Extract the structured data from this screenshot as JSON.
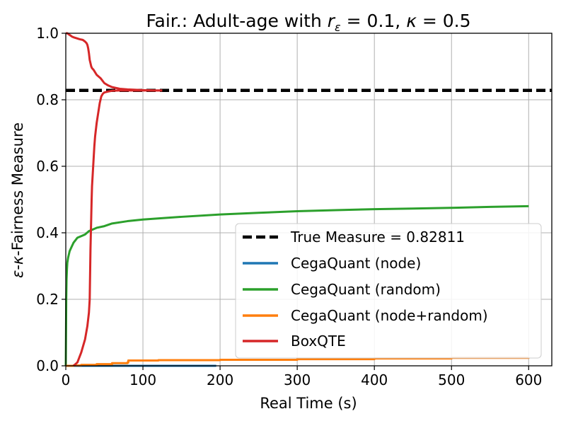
{
  "chart_data": {
    "type": "line",
    "title": "Fair.: Adult-age with r_ε = 0.1, κ = 0.5",
    "title_parts": {
      "prefix": "Fair.: Adult-age with ",
      "r": "r",
      "r_sub": "ε",
      "r_eq": " = 0.1, ",
      "kappa": "κ",
      "kappa_eq": " = 0.5"
    },
    "xlabel": "Real Time (s)",
    "ylabel": "ε-κ-Fairness Measure",
    "ylabel_parts": {
      "eps": "ε",
      "sep1": "-",
      "kappa": "κ",
      "rest": "-Fairness Measure"
    },
    "xlim": [
      0,
      630
    ],
    "ylim": [
      0,
      1.0
    ],
    "xticks": [
      0,
      100,
      200,
      300,
      400,
      500,
      600
    ],
    "xtick_labels": [
      "0",
      "100",
      "200",
      "300",
      "400",
      "500",
      "600"
    ],
    "yticks": [
      0,
      0.2,
      0.4,
      0.6,
      0.8,
      1.0
    ],
    "ytick_labels": [
      "0.0",
      "0.2",
      "0.4",
      "0.6",
      "0.8",
      "1.0"
    ],
    "grid": true,
    "legend_position": "lower-right",
    "reference_line": {
      "name": "True Measure = 0.82811",
      "y": 0.82811,
      "color": "#000000",
      "style": "dashed"
    },
    "series": [
      {
        "name": "CegaQuant (node)",
        "color": "#1f77b4",
        "x": [
          0,
          30,
          60,
          100,
          150,
          195
        ],
        "y": [
          0.0,
          0.0,
          0.0,
          0.0,
          0.0,
          0.0
        ]
      },
      {
        "name": "CegaQuant (random)",
        "color": "#2ca02c",
        "x": [
          0,
          0.3,
          0.6,
          1,
          1.5,
          2,
          3,
          4,
          5,
          7,
          10,
          15,
          20,
          25,
          30,
          40,
          50,
          60,
          80,
          100,
          150,
          200,
          250,
          300,
          350,
          400,
          450,
          500,
          550,
          600
        ],
        "y": [
          0.0,
          0.1,
          0.2,
          0.26,
          0.29,
          0.31,
          0.325,
          0.335,
          0.345,
          0.355,
          0.37,
          0.385,
          0.39,
          0.395,
          0.405,
          0.415,
          0.42,
          0.428,
          0.435,
          0.44,
          0.448,
          0.455,
          0.46,
          0.465,
          0.468,
          0.471,
          0.473,
          0.475,
          0.478,
          0.48
        ]
      },
      {
        "name": "CegaQuant (node+random)",
        "color": "#ff7f0e",
        "x": [
          0,
          10,
          20,
          40,
          60,
          80,
          81,
          120,
          200,
          300,
          400,
          500,
          600
        ],
        "y": [
          0.0,
          0.001,
          0.003,
          0.005,
          0.008,
          0.01,
          0.016,
          0.017,
          0.018,
          0.02,
          0.022,
          0.024,
          0.025
        ],
        "step": true
      },
      {
        "name": "BoxQTE",
        "color": "#d62728",
        "segments": [
          {
            "x": [
              10,
              15,
              20,
              25,
              28,
              30,
              31,
              32,
              33,
              33.5,
              34,
              35,
              36,
              37,
              38,
              40,
              42,
              44,
              46,
              48,
              50,
              55,
              60,
              70,
              80,
              100,
              120,
              125
            ],
            "y": [
              0.0,
              0.01,
              0.04,
              0.08,
              0.12,
              0.16,
              0.2,
              0.35,
              0.45,
              0.5,
              0.54,
              0.58,
              0.62,
              0.66,
              0.69,
              0.73,
              0.76,
              0.79,
              0.81,
              0.818,
              0.822,
              0.825,
              0.827,
              0.828,
              0.828,
              0.828,
              0.828,
              0.828
            ]
          },
          {
            "x": [
              0,
              2,
              5,
              8,
              10,
              14,
              18,
              22,
              25,
              27,
              28,
              29,
              30,
              31,
              32,
              33,
              34,
              36,
              40,
              45,
              50,
              55,
              60,
              70,
              80,
              90,
              100,
              115,
              125
            ],
            "y": [
              1.0,
              1.0,
              0.995,
              0.99,
              0.988,
              0.985,
              0.982,
              0.98,
              0.975,
              0.97,
              0.965,
              0.955,
              0.94,
              0.92,
              0.91,
              0.9,
              0.895,
              0.89,
              0.875,
              0.865,
              0.85,
              0.843,
              0.838,
              0.833,
              0.831,
              0.83,
              0.829,
              0.828,
              0.828
            ]
          }
        ]
      }
    ]
  }
}
